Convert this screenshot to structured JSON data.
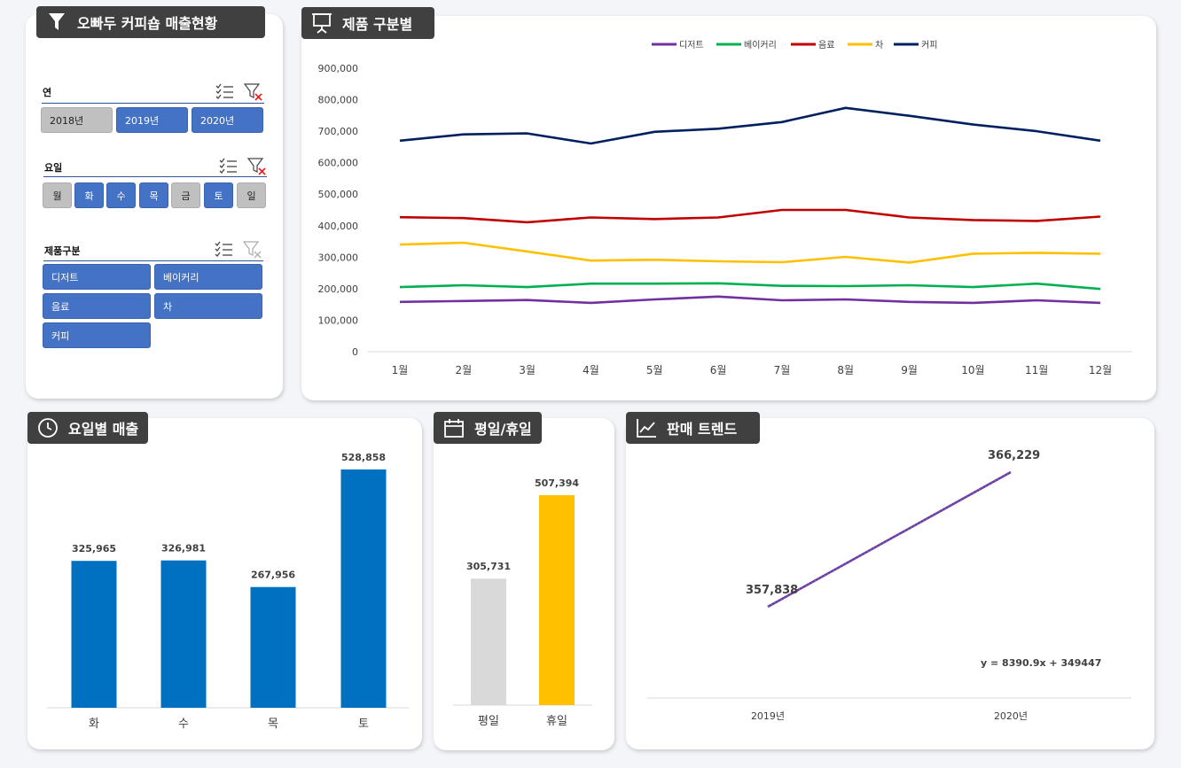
{
  "slicer_panel": {
    "title": "오빠두 커피숍 매출현황",
    "year": {
      "label": "연",
      "items": [
        {
          "label": "2018년",
          "selected": false
        },
        {
          "label": "2019년",
          "selected": true
        },
        {
          "label": "2020년",
          "selected": true
        }
      ]
    },
    "weekday": {
      "label": "요일",
      "items": [
        {
          "label": "월",
          "selected": false
        },
        {
          "label": "화",
          "selected": true
        },
        {
          "label": "수",
          "selected": true
        },
        {
          "label": "목",
          "selected": true
        },
        {
          "label": "금",
          "selected": false
        },
        {
          "label": "토",
          "selected": true
        },
        {
          "label": "일",
          "selected": false
        }
      ]
    },
    "product": {
      "label": "제품구분",
      "items": [
        {
          "label": "디저트",
          "selected": true
        },
        {
          "label": "베이커리",
          "selected": true
        },
        {
          "label": "음료",
          "selected": true
        },
        {
          "label": "차",
          "selected": true
        },
        {
          "label": "커피",
          "selected": true
        }
      ]
    }
  },
  "colors": {
    "selected": "#4472c4",
    "unselected": "#c0c0c0",
    "tag_bg": "#404040",
    "bar_blue": "#0070c0",
    "bar_gray": "#d9d9d9",
    "bar_gold": "#ffc000",
    "trend": "#7030a0"
  },
  "chart_data": [
    {
      "id": "product",
      "title": "제품 구분별",
      "type": "line",
      "categories": [
        "1월",
        "2월",
        "3월",
        "4월",
        "5월",
        "6월",
        "7월",
        "8월",
        "9월",
        "10월",
        "11월",
        "12월"
      ],
      "ylim": [
        0,
        900000
      ],
      "yticks": [
        "0",
        "100,000",
        "200,000",
        "300,000",
        "400,000",
        "500,000",
        "600,000",
        "700,000",
        "800,000",
        "900,000"
      ],
      "legend_position": "top",
      "grid": false,
      "series": [
        {
          "name": "디저트",
          "color": "#7030a0",
          "values": [
            158000,
            161000,
            164000,
            155000,
            166000,
            175000,
            163000,
            166000,
            158000,
            155000,
            163000,
            155000
          ]
        },
        {
          "name": "베이커리",
          "color": "#00b050",
          "values": [
            205000,
            211000,
            205000,
            216000,
            216000,
            217000,
            209000,
            208000,
            211000,
            205000,
            216000,
            199000
          ]
        },
        {
          "name": "음료",
          "color": "#c00000",
          "values": [
            427000,
            424000,
            411000,
            426000,
            421000,
            426000,
            450000,
            450000,
            426000,
            418000,
            415000,
            429000
          ]
        },
        {
          "name": "차",
          "color": "#ffc000",
          "values": [
            340000,
            346000,
            318000,
            289000,
            292000,
            287000,
            284000,
            301000,
            283000,
            311000,
            314000,
            311000
          ]
        },
        {
          "name": "커피",
          "color": "#002060",
          "values": [
            670000,
            690000,
            693000,
            661000,
            698000,
            708000,
            729000,
            774000,
            749000,
            721000,
            700000,
            670000
          ]
        }
      ]
    },
    {
      "id": "weekday",
      "title": "요일별 매출",
      "type": "bar",
      "categories": [
        "화",
        "수",
        "목",
        "토"
      ],
      "values": [
        325965,
        326981,
        267956,
        528858
      ],
      "labels": [
        "325,965",
        "326,981",
        "267,956",
        "528,858"
      ],
      "ylim": [
        0,
        528858
      ],
      "color": "#0070c0"
    },
    {
      "id": "weekend",
      "title": "평일/휴일",
      "type": "bar",
      "categories": [
        "평일",
        "휴일"
      ],
      "values": [
        305731,
        507394
      ],
      "labels": [
        "305,731",
        "507,394"
      ],
      "colors": [
        "#d9d9d9",
        "#ffc000"
      ],
      "ylim": [
        0,
        507394
      ]
    },
    {
      "id": "trend",
      "title": "판매 트렌드",
      "type": "line",
      "categories": [
        "2019년",
        "2020년"
      ],
      "values": [
        357838,
        366229
      ],
      "labels": [
        "357,838",
        "366,229"
      ],
      "trendline_label": "y = 8390.9x + 349447",
      "color": "#7030a0"
    }
  ]
}
